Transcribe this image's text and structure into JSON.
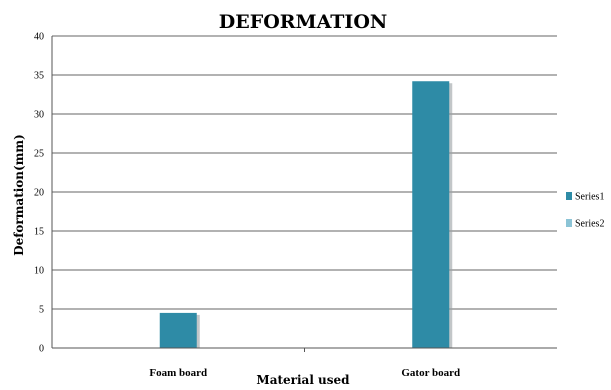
{
  "chart_data": {
    "type": "bar",
    "title": "DEFORMATION",
    "xlabel": "Material used",
    "ylabel": "Deformation(mm)",
    "categories": [
      "Foam board",
      "Gator board"
    ],
    "series": [
      {
        "name": "Series1",
        "values": [
          4.5,
          34.2
        ],
        "color": "#2E8BA6"
      },
      {
        "name": "Series2",
        "values": [
          0,
          0
        ],
        "color": "#8CC4D6"
      }
    ],
    "ylim": [
      0,
      40
    ],
    "yticks": [
      0,
      5,
      10,
      15,
      20,
      25,
      30,
      35,
      40
    ],
    "grid": true,
    "legend": "right"
  }
}
